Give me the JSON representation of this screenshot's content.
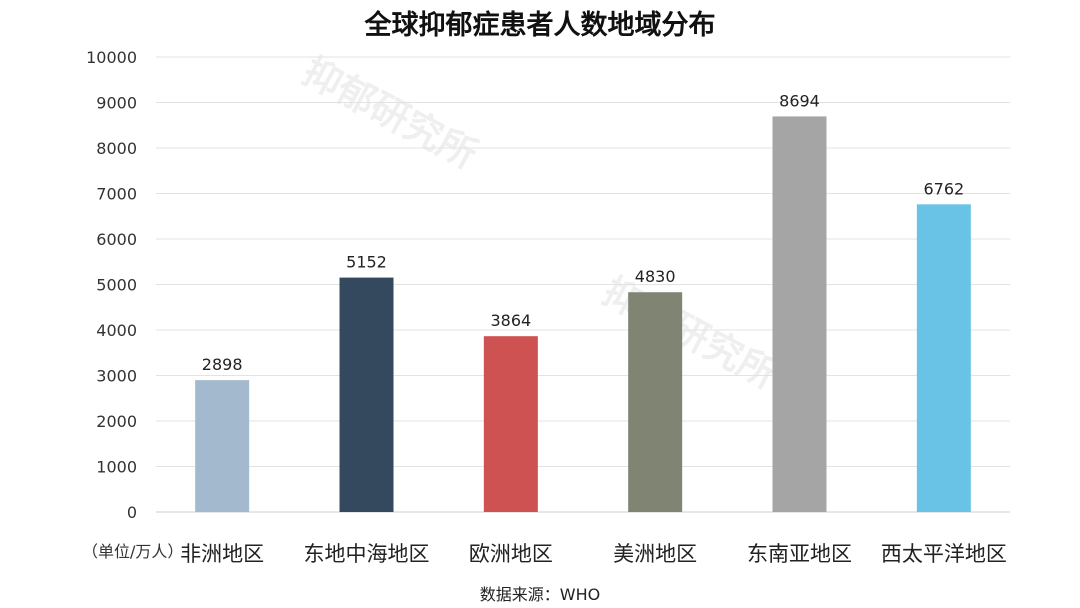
{
  "chart_data": {
    "type": "bar",
    "title": "全球抑郁症患者人数地域分布",
    "categories": [
      "非洲地区",
      "东地中海地区",
      "欧洲地区",
      "美洲地区",
      "东南亚地区",
      "西太平洋地区"
    ],
    "values": [
      2898,
      5152,
      3864,
      4830,
      8694,
      6762
    ],
    "colors": [
      "#a3b9ce",
      "#34495e",
      "#cf5252",
      "#7f8572",
      "#a5a5a5",
      "#69c3e6"
    ],
    "ylim": [
      0,
      10000
    ],
    "yticks": [
      0,
      1000,
      2000,
      3000,
      4000,
      5000,
      6000,
      7000,
      8000,
      9000,
      10000
    ],
    "unit_label": "（单位/万人）",
    "source": "数据来源：WHO",
    "grid": true,
    "legend": "none"
  },
  "watermark": "抑郁研究所"
}
